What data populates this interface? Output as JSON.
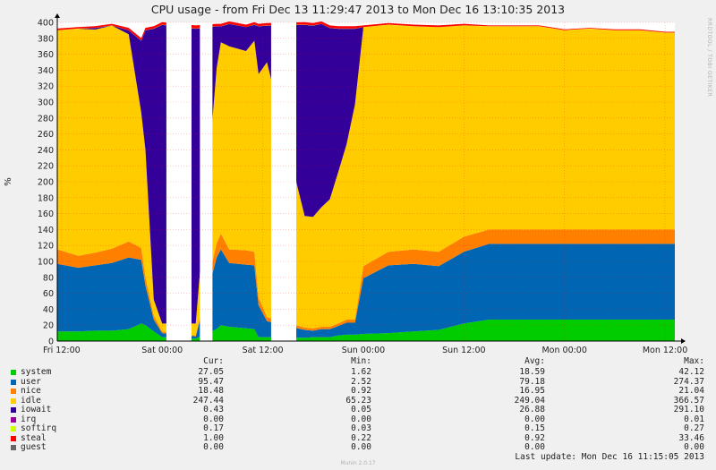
{
  "chart_data": {
    "type": "area",
    "title": "CPU usage - from Fri Dec 13 11:29:47 2013 to Mon Dec 16 13:10:35 2013",
    "ylabel": "%",
    "xlabel": "",
    "ylim": [
      0,
      400
    ],
    "yticks": [
      0,
      20,
      40,
      60,
      80,
      100,
      120,
      140,
      160,
      180,
      200,
      220,
      240,
      260,
      280,
      300,
      320,
      340,
      360,
      380,
      400
    ],
    "xlim": [
      "2013-12-13 11:29",
      "2013-12-16 13:10"
    ],
    "x_ticks": [
      {
        "label": "Fri 12:00",
        "time": "2013-12-13 12:00"
      },
      {
        "label": "Sat 00:00",
        "time": "2013-12-14 00:00"
      },
      {
        "label": "Sat 12:00",
        "time": "2013-12-14 12:00"
      },
      {
        "label": "Sun 00:00",
        "time": "2013-12-15 00:00"
      },
      {
        "label": "Sun 12:00",
        "time": "2013-12-15 12:00"
      },
      {
        "label": "Mon 00:00",
        "time": "2013-12-16 00:00"
      },
      {
        "label": "Mon 12:00",
        "time": "2013-12-16 12:00"
      }
    ],
    "gaps": [
      [
        "2013-12-14 00:30",
        "2013-12-14 03:30"
      ],
      [
        "2013-12-14 04:30",
        "2013-12-14 06:00"
      ],
      [
        "2013-12-14 13:00",
        "2013-12-14 16:00"
      ]
    ],
    "stacked": true,
    "grid": true,
    "x": [
      "2013-12-13 11:30",
      "2013-12-13 14:00",
      "2013-12-13 16:00",
      "2013-12-13 18:00",
      "2013-12-13 20:00",
      "2013-12-13 21:30",
      "2013-12-13 22:00",
      "2013-12-13 23:00",
      "2013-12-14 00:00",
      "2013-12-14 04:00",
      "2013-12-14 06:30",
      "2013-12-14 07:00",
      "2013-12-14 08:00",
      "2013-12-14 10:00",
      "2013-12-14 11:00",
      "2013-12-14 11:30",
      "2013-12-14 12:30",
      "2013-12-14 17:00",
      "2013-12-14 18:00",
      "2013-12-14 19:00",
      "2013-12-14 20:00",
      "2013-12-14 21:00",
      "2013-12-14 22:00",
      "2013-12-14 23:00",
      "2013-12-15 00:00",
      "2013-12-15 03:00",
      "2013-12-15 06:00",
      "2013-12-15 09:00",
      "2013-12-15 12:00",
      "2013-12-15 15:00",
      "2013-12-15 18:00",
      "2013-12-15 21:00",
      "2013-12-16 00:00",
      "2013-12-16 03:00",
      "2013-12-16 06:00",
      "2013-12-16 09:00",
      "2013-12-16 12:00",
      "2013-12-16 13:10"
    ],
    "series": [
      {
        "name": "system",
        "color": "#00cc00",
        "values": [
          12,
          12,
          13,
          13,
          15,
          22,
          20,
          12,
          5,
          3,
          15,
          20,
          18,
          16,
          15,
          5,
          5,
          4,
          5,
          5,
          5,
          7,
          8,
          8,
          9,
          10,
          12,
          14,
          22,
          27,
          27,
          27,
          27,
          27,
          27,
          27,
          27,
          27
        ]
      },
      {
        "name": "user",
        "color": "#0066b3",
        "values": [
          85,
          80,
          82,
          85,
          90,
          80,
          50,
          15,
          5,
          3,
          90,
          95,
          80,
          80,
          80,
          40,
          20,
          10,
          8,
          10,
          10,
          12,
          15,
          15,
          70,
          85,
          85,
          80,
          90,
          95,
          95,
          95,
          95,
          95,
          95,
          95,
          95,
          95
        ]
      },
      {
        "name": "nice",
        "color": "#ff8000",
        "values": [
          18,
          15,
          16,
          18,
          20,
          15,
          10,
          5,
          2,
          1,
          18,
          20,
          17,
          18,
          17,
          10,
          5,
          3,
          3,
          3,
          3,
          3,
          4,
          4,
          15,
          17,
          18,
          18,
          19,
          18,
          18,
          18,
          18,
          18,
          18,
          18,
          18,
          18
        ]
      },
      {
        "name": "idle",
        "color": "#ffcc00",
        "values": [
          275,
          285,
          280,
          280,
          260,
          170,
          160,
          20,
          10,
          15,
          220,
          240,
          255,
          250,
          265,
          280,
          320,
          140,
          140,
          150,
          160,
          190,
          220,
          270,
          300,
          285,
          280,
          282,
          265,
          255,
          255,
          255,
          250,
          252,
          250,
          250,
          247,
          247
        ]
      },
      {
        "name": "iowait",
        "color": "#330099",
        "values": [
          0,
          0,
          2,
          0,
          5,
          90,
          150,
          340,
          375,
          370,
          52,
          20,
          28,
          30,
          20,
          60,
          46,
          240,
          240,
          230,
          215,
          180,
          145,
          95,
          0,
          0,
          0,
          0,
          0,
          0,
          0,
          0,
          0,
          0,
          0,
          0,
          0,
          0
        ]
      },
      {
        "name": "irq",
        "color": "#990099",
        "values": [
          0,
          0,
          0,
          0,
          0,
          0,
          0,
          0,
          0,
          0,
          0,
          0,
          0,
          0,
          0,
          0,
          0,
          0,
          0,
          0,
          0,
          0,
          0,
          0,
          0,
          0,
          0,
          0,
          0,
          0,
          0,
          0,
          0,
          0,
          0,
          0,
          0,
          0
        ]
      },
      {
        "name": "softirq",
        "color": "#ccff00",
        "values": [
          0.2,
          0.2,
          0.2,
          0.2,
          0.2,
          0.2,
          0.2,
          0.2,
          0.2,
          0.2,
          0.2,
          0.2,
          0.2,
          0.2,
          0.2,
          0.2,
          0.2,
          0.2,
          0.2,
          0.2,
          0.2,
          0.2,
          0.2,
          0.2,
          0.2,
          0.2,
          0.2,
          0.2,
          0.2,
          0.2,
          0.2,
          0.2,
          0.2,
          0.2,
          0.2,
          0.2,
          0.2,
          0.2
        ]
      },
      {
        "name": "steal",
        "color": "#ff0000",
        "values": [
          2,
          2,
          2,
          2,
          3,
          3,
          3,
          3,
          3,
          4,
          3,
          3,
          3,
          3,
          3,
          3,
          3,
          3,
          3,
          3,
          3,
          3,
          3,
          3,
          2,
          2,
          2,
          2,
          2,
          1,
          1,
          1,
          1,
          1,
          1,
          1,
          1,
          1
        ]
      },
      {
        "name": "guest",
        "color": "#808080",
        "values": [
          0,
          0,
          0,
          0,
          0,
          0,
          0,
          0,
          0,
          0,
          0,
          0,
          0,
          0,
          0,
          0,
          0,
          0,
          0,
          0,
          0,
          0,
          0,
          0,
          0,
          0,
          0,
          0,
          0,
          0,
          0,
          0,
          0,
          0,
          0,
          0,
          0,
          0
        ]
      }
    ]
  },
  "legend": {
    "headers": {
      "cur": "Cur:",
      "min": "Min:",
      "avg": "Avg:",
      "max": "Max:"
    },
    "rows": [
      {
        "name": "system",
        "color": "#00cc00",
        "cur": "27.05",
        "min": "1.62",
        "avg": "18.59",
        "max": "42.12"
      },
      {
        "name": "user",
        "color": "#0066b3",
        "cur": "95.47",
        "min": "2.52",
        "avg": "79.18",
        "max": "274.37"
      },
      {
        "name": "nice",
        "color": "#ff8000",
        "cur": "18.48",
        "min": "0.92",
        "avg": "16.95",
        "max": "21.04"
      },
      {
        "name": "idle",
        "color": "#ffcc00",
        "cur": "247.44",
        "min": "65.23",
        "avg": "249.04",
        "max": "366.57"
      },
      {
        "name": "iowait",
        "color": "#330099",
        "cur": "0.43",
        "min": "0.05",
        "avg": "26.88",
        "max": "291.10"
      },
      {
        "name": "irq",
        "color": "#990099",
        "cur": "0.00",
        "min": "0.00",
        "avg": "0.00",
        "max": "0.01"
      },
      {
        "name": "softirq",
        "color": "#ccff00",
        "cur": "0.17",
        "min": "0.03",
        "avg": "0.15",
        "max": "0.27"
      },
      {
        "name": "steal",
        "color": "#ff0000",
        "cur": "1.00",
        "min": "0.22",
        "avg": "0.92",
        "max": "33.46"
      },
      {
        "name": "guest",
        "color": "#666666",
        "cur": "0.00",
        "min": "0.00",
        "avg": "0.00",
        "max": "0.00"
      }
    ]
  },
  "last_update": "Last update: Mon Dec 16 11:15:05 2013",
  "side_text": "RRDTOOL / TOBI OETIKER",
  "footer_version": "Munin 2.0.17"
}
